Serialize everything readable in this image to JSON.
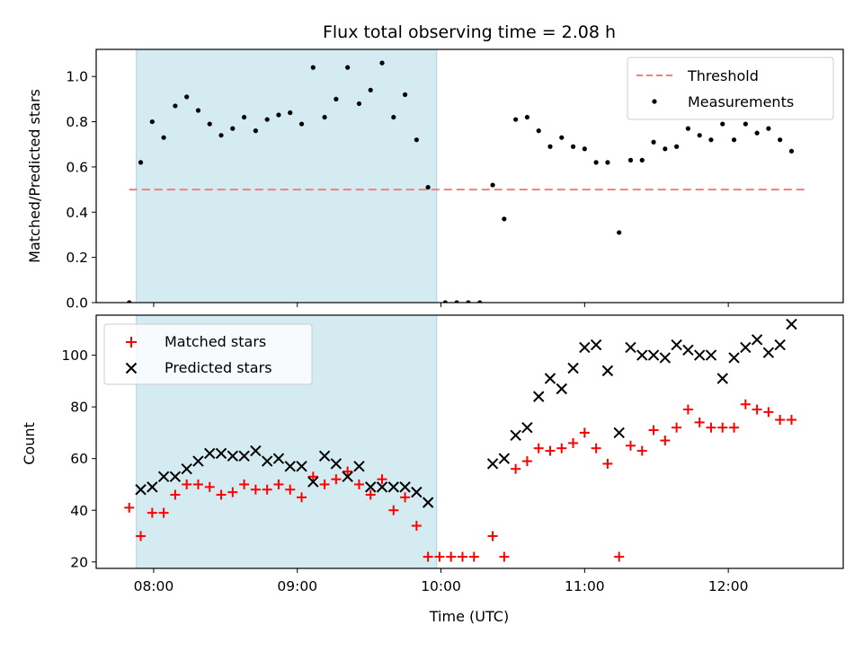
{
  "chart_data": [
    {
      "type": "scatter",
      "title": "Flux total observing time = 2.08 h",
      "xlabel": "",
      "ylabel": "Matched/Predicted stars",
      "x_unit": "hours UTC",
      "xlim": [
        7.6,
        12.8
      ],
      "ylim": [
        0,
        1.12
      ],
      "yticks": [
        0.0,
        0.2,
        0.4,
        0.6,
        0.8,
        1.0
      ],
      "ytick_labels": [
        "0.0",
        "0.2",
        "0.4",
        "0.6",
        "0.8",
        "1.0"
      ],
      "shaded_region": {
        "x": [
          7.88,
          9.97
        ],
        "color": "#d4ebf2"
      },
      "threshold": {
        "name": "Threshold",
        "value": 0.5,
        "x": [
          7.83,
          12.56
        ],
        "color": "#f08080",
        "style": "dashed"
      },
      "legend_position": "top-right",
      "legend": [
        "Threshold",
        "Measurements"
      ],
      "series": [
        {
          "name": "Measurements",
          "color": "#000000",
          "marker": "dot",
          "points": [
            [
              7.83,
              0.0
            ],
            [
              7.91,
              0.62
            ],
            [
              7.99,
              0.8
            ],
            [
              8.07,
              0.73
            ],
            [
              8.15,
              0.87
            ],
            [
              8.23,
              0.91
            ],
            [
              8.31,
              0.85
            ],
            [
              8.39,
              0.79
            ],
            [
              8.47,
              0.74
            ],
            [
              8.55,
              0.77
            ],
            [
              8.63,
              0.82
            ],
            [
              8.71,
              0.76
            ],
            [
              8.79,
              0.81
            ],
            [
              8.87,
              0.83
            ],
            [
              8.95,
              0.84
            ],
            [
              9.03,
              0.79
            ],
            [
              9.11,
              1.04
            ],
            [
              9.19,
              0.82
            ],
            [
              9.27,
              0.9
            ],
            [
              9.35,
              1.04
            ],
            [
              9.43,
              0.88
            ],
            [
              9.51,
              0.94
            ],
            [
              9.59,
              1.06
            ],
            [
              9.67,
              0.82
            ],
            [
              9.75,
              0.92
            ],
            [
              9.83,
              0.72
            ],
            [
              9.91,
              0.51
            ],
            [
              10.03,
              0.0
            ],
            [
              10.11,
              0.0
            ],
            [
              10.19,
              0.0
            ],
            [
              10.27,
              0.0
            ],
            [
              10.36,
              0.52
            ],
            [
              10.44,
              0.37
            ],
            [
              10.52,
              0.81
            ],
            [
              10.6,
              0.82
            ],
            [
              10.68,
              0.76
            ],
            [
              10.76,
              0.69
            ],
            [
              10.84,
              0.73
            ],
            [
              10.92,
              0.69
            ],
            [
              11.0,
              0.68
            ],
            [
              11.08,
              0.62
            ],
            [
              11.16,
              0.62
            ],
            [
              11.24,
              0.31
            ],
            [
              11.32,
              0.63
            ],
            [
              11.4,
              0.63
            ],
            [
              11.48,
              0.71
            ],
            [
              11.56,
              0.68
            ],
            [
              11.64,
              0.69
            ],
            [
              11.72,
              0.77
            ],
            [
              11.8,
              0.74
            ],
            [
              11.88,
              0.72
            ],
            [
              11.96,
              0.79
            ],
            [
              12.04,
              0.72
            ],
            [
              12.12,
              0.79
            ],
            [
              12.2,
              0.75
            ],
            [
              12.28,
              0.77
            ],
            [
              12.36,
              0.72
            ],
            [
              12.44,
              0.67
            ]
          ]
        }
      ]
    },
    {
      "type": "scatter",
      "title": "",
      "xlabel": "Time (UTC)",
      "ylabel": "Count",
      "x_unit": "hours UTC",
      "xlim": [
        7.6,
        12.8
      ],
      "ylim": [
        17.5,
        115.5
      ],
      "xticks": [
        8,
        9,
        10,
        11,
        12
      ],
      "xtick_labels": [
        "08:00",
        "09:00",
        "10:00",
        "11:00",
        "12:00"
      ],
      "yticks": [
        20,
        40,
        60,
        80,
        100
      ],
      "ytick_labels": [
        "20",
        "40",
        "60",
        "80",
        "100"
      ],
      "shaded_region": {
        "x": [
          7.88,
          9.97
        ],
        "color": "#d4ebf2"
      },
      "legend_position": "top-left",
      "series": [
        {
          "name": "Matched stars",
          "color": "#ff0000",
          "marker": "plus",
          "points": [
            [
              7.83,
              41
            ],
            [
              7.91,
              30
            ],
            [
              7.99,
              39
            ],
            [
              8.07,
              39
            ],
            [
              8.15,
              46
            ],
            [
              8.23,
              50
            ],
            [
              8.31,
              50
            ],
            [
              8.39,
              49
            ],
            [
              8.47,
              46
            ],
            [
              8.55,
              47
            ],
            [
              8.63,
              50
            ],
            [
              8.71,
              48
            ],
            [
              8.79,
              48
            ],
            [
              8.87,
              50
            ],
            [
              8.95,
              48
            ],
            [
              9.03,
              45
            ],
            [
              9.11,
              53
            ],
            [
              9.19,
              50
            ],
            [
              9.27,
              52
            ],
            [
              9.35,
              55
            ],
            [
              9.43,
              50
            ],
            [
              9.51,
              46
            ],
            [
              9.59,
              52
            ],
            [
              9.67,
              40
            ],
            [
              9.75,
              45
            ],
            [
              9.83,
              34
            ],
            [
              9.91,
              22
            ],
            [
              9.99,
              22
            ],
            [
              10.07,
              22
            ],
            [
              10.15,
              22
            ],
            [
              10.23,
              22
            ],
            [
              10.36,
              30
            ],
            [
              10.44,
              22
            ],
            [
              10.52,
              56
            ],
            [
              10.6,
              59
            ],
            [
              10.68,
              64
            ],
            [
              10.76,
              63
            ],
            [
              10.84,
              64
            ],
            [
              10.92,
              66
            ],
            [
              11.0,
              70
            ],
            [
              11.08,
              64
            ],
            [
              11.16,
              58
            ],
            [
              11.24,
              22
            ],
            [
              11.32,
              65
            ],
            [
              11.4,
              63
            ],
            [
              11.48,
              71
            ],
            [
              11.56,
              67
            ],
            [
              11.64,
              72
            ],
            [
              11.72,
              79
            ],
            [
              11.8,
              74
            ],
            [
              11.88,
              72
            ],
            [
              11.96,
              72
            ],
            [
              12.04,
              72
            ],
            [
              12.12,
              81
            ],
            [
              12.2,
              79
            ],
            [
              12.28,
              78
            ],
            [
              12.36,
              75
            ],
            [
              12.44,
              75
            ]
          ]
        },
        {
          "name": "Predicted stars",
          "color": "#000000",
          "marker": "x",
          "points": [
            [
              7.91,
              48
            ],
            [
              7.99,
              49
            ],
            [
              8.07,
              53
            ],
            [
              8.15,
              53
            ],
            [
              8.23,
              56
            ],
            [
              8.31,
              59
            ],
            [
              8.39,
              62
            ],
            [
              8.47,
              62
            ],
            [
              8.55,
              61
            ],
            [
              8.63,
              61
            ],
            [
              8.71,
              63
            ],
            [
              8.79,
              59
            ],
            [
              8.87,
              60
            ],
            [
              8.95,
              57
            ],
            [
              9.03,
              57
            ],
            [
              9.11,
              51
            ],
            [
              9.19,
              61
            ],
            [
              9.27,
              58
            ],
            [
              9.35,
              53
            ],
            [
              9.43,
              57
            ],
            [
              9.51,
              49
            ],
            [
              9.59,
              49
            ],
            [
              9.67,
              49
            ],
            [
              9.75,
              49
            ],
            [
              9.83,
              47
            ],
            [
              9.91,
              43
            ],
            [
              10.36,
              58
            ],
            [
              10.44,
              60
            ],
            [
              10.52,
              69
            ],
            [
              10.6,
              72
            ],
            [
              10.68,
              84
            ],
            [
              10.76,
              91
            ],
            [
              10.84,
              87
            ],
            [
              10.92,
              95
            ],
            [
              11.0,
              103
            ],
            [
              11.08,
              104
            ],
            [
              11.16,
              94
            ],
            [
              11.24,
              70
            ],
            [
              11.32,
              103
            ],
            [
              11.4,
              100
            ],
            [
              11.48,
              100
            ],
            [
              11.56,
              99
            ],
            [
              11.64,
              104
            ],
            [
              11.72,
              102
            ],
            [
              11.8,
              100
            ],
            [
              11.88,
              100
            ],
            [
              11.96,
              91
            ],
            [
              12.04,
              99
            ],
            [
              12.12,
              103
            ],
            [
              12.2,
              106
            ],
            [
              12.28,
              101
            ],
            [
              12.36,
              104
            ],
            [
              12.44,
              112
            ]
          ]
        }
      ]
    }
  ]
}
